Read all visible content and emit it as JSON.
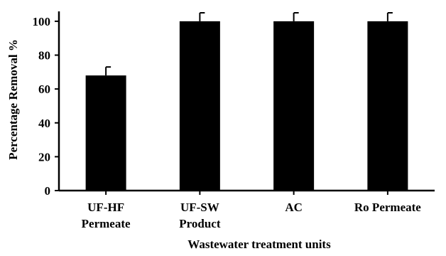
{
  "chart_data": {
    "type": "bar",
    "categories": [
      [
        "UF-HF",
        "Permeate"
      ],
      [
        "UF-SW",
        "Product"
      ],
      [
        "AC"
      ],
      [
        "Ro Permeate"
      ]
    ],
    "values": [
      68,
      100,
      100,
      100
    ],
    "error": [
      5,
      5,
      5,
      5
    ],
    "xlabel": "Wastewater treatment units",
    "ylabel": "Percentage Removal %",
    "ylim": [
      0,
      105
    ],
    "yticks": [
      0,
      20,
      40,
      60,
      80,
      100
    ],
    "grid": false,
    "bar_color": "#000000"
  }
}
